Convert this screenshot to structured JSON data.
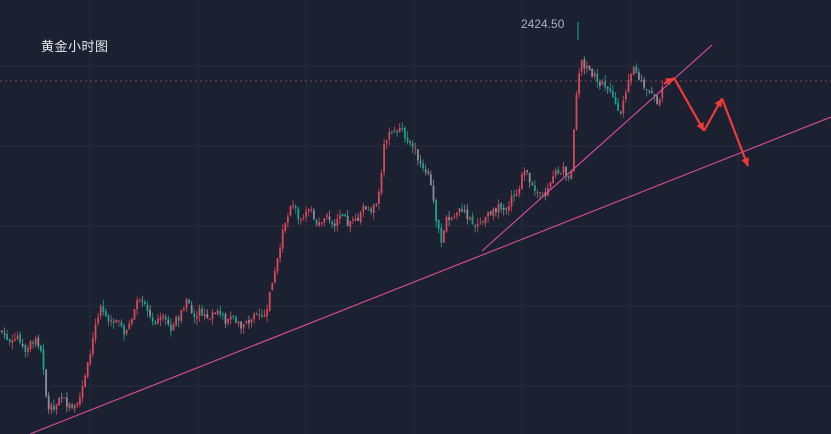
{
  "chart_data": {
    "type": "candlestick",
    "title": "黄金小时图",
    "xlabel": "",
    "ylabel": "",
    "grid": true,
    "high_label": "2424.50",
    "ylim": [
      2290,
      2430
    ],
    "price_path": [
      [
        0,
        2325
      ],
      [
        8,
        2322
      ],
      [
        16,
        2324
      ],
      [
        24,
        2319
      ],
      [
        32,
        2322
      ],
      [
        40,
        2319
      ],
      [
        46,
        2300
      ],
      [
        52,
        2298
      ],
      [
        60,
        2302
      ],
      [
        70,
        2300
      ],
      [
        80,
        2303
      ],
      [
        88,
        2315
      ],
      [
        94,
        2327
      ],
      [
        100,
        2332
      ],
      [
        108,
        2328
      ],
      [
        116,
        2330
      ],
      [
        124,
        2324
      ],
      [
        132,
        2331
      ],
      [
        140,
        2338
      ],
      [
        146,
        2332
      ],
      [
        154,
        2328
      ],
      [
        162,
        2330
      ],
      [
        170,
        2326
      ],
      [
        178,
        2330
      ],
      [
        186,
        2336
      ],
      [
        192,
        2330
      ],
      [
        200,
        2332
      ],
      [
        208,
        2330
      ],
      [
        216,
        2333
      ],
      [
        224,
        2328
      ],
      [
        232,
        2331
      ],
      [
        240,
        2326
      ],
      [
        248,
        2328
      ],
      [
        256,
        2332
      ],
      [
        264,
        2330
      ],
      [
        272,
        2343
      ],
      [
        280,
        2356
      ],
      [
        288,
        2365
      ],
      [
        294,
        2368
      ],
      [
        300,
        2362
      ],
      [
        308,
        2366
      ],
      [
        316,
        2362
      ],
      [
        324,
        2364
      ],
      [
        332,
        2361
      ],
      [
        340,
        2364
      ],
      [
        348,
        2361
      ],
      [
        356,
        2363
      ],
      [
        364,
        2367
      ],
      [
        372,
        2366
      ],
      [
        378,
        2372
      ],
      [
        384,
        2390
      ],
      [
        392,
        2394
      ],
      [
        400,
        2393
      ],
      [
        408,
        2390
      ],
      [
        414,
        2386
      ],
      [
        420,
        2382
      ],
      [
        428,
        2378
      ],
      [
        432,
        2372
      ],
      [
        436,
        2360
      ],
      [
        440,
        2356
      ],
      [
        446,
        2363
      ],
      [
        454,
        2364
      ],
      [
        462,
        2367
      ],
      [
        470,
        2362
      ],
      [
        478,
        2360
      ],
      [
        486,
        2364
      ],
      [
        494,
        2367
      ],
      [
        502,
        2366
      ],
      [
        510,
        2370
      ],
      [
        518,
        2374
      ],
      [
        524,
        2380
      ],
      [
        530,
        2374
      ],
      [
        538,
        2370
      ],
      [
        546,
        2372
      ],
      [
        554,
        2378
      ],
      [
        562,
        2380
      ],
      [
        570,
        2378
      ],
      [
        574,
        2400
      ],
      [
        580,
        2416
      ],
      [
        588,
        2414
      ],
      [
        596,
        2411
      ],
      [
        604,
        2408
      ],
      [
        612,
        2404
      ],
      [
        620,
        2400
      ],
      [
        626,
        2407
      ],
      [
        632,
        2414
      ],
      [
        640,
        2410
      ],
      [
        648,
        2407
      ],
      [
        656,
        2403
      ],
      [
        662,
        2407
      ]
    ],
    "arrow_path": [
      [
        664,
        2409
      ],
      [
        674,
        2411
      ],
      [
        704,
        2393
      ],
      [
        722,
        2404
      ],
      [
        748,
        2381
      ]
    ]
  }
}
